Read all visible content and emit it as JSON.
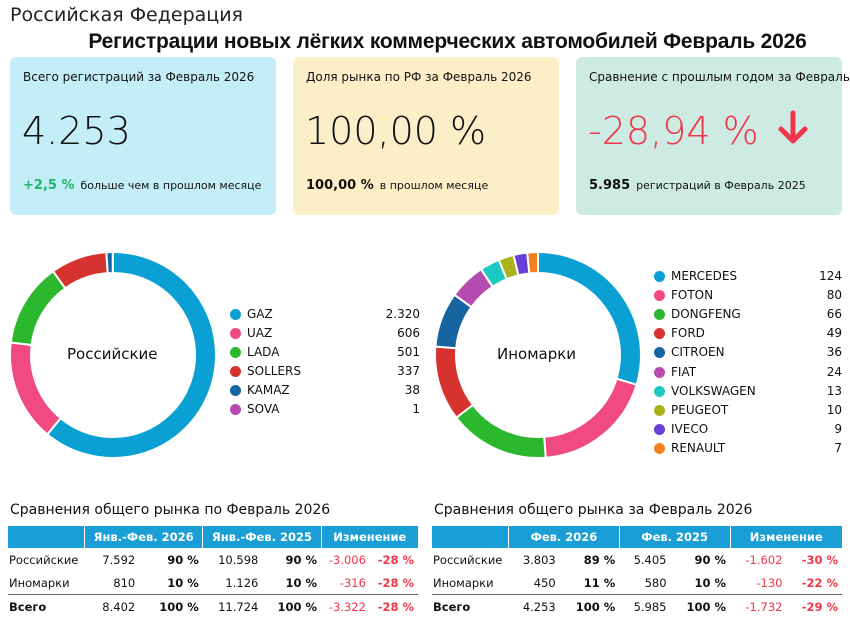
{
  "header": {
    "region": "Российская Федерация",
    "title": "Регистрации новых лёгких коммерческих автомобилей Февраль 2026"
  },
  "cards": {
    "total": {
      "caption": "Всего регистраций за Февраль 2026",
      "value": "4.253",
      "delta": "+2,5 %",
      "delta_text": "больше чем в прошлом месяце"
    },
    "share": {
      "caption": "Доля рынка по РФ за Февраль 2026",
      "value": "100,00 %",
      "prev": "100,00 %",
      "prev_text": "в прошлом месяце"
    },
    "yoy": {
      "caption": "Сравнение с прошлым годом за Февраль",
      "value": "-28,94 %",
      "prev": "5.985",
      "prev_text": "регистраций в Февраль 2025",
      "arrow_icon": "arrow-down-icon"
    }
  },
  "colors": {
    "accent_blue": "#1a9ed6",
    "positive": "#1db46d",
    "negative": "#f0364b"
  },
  "chart_data": [
    {
      "type": "pie",
      "donut": true,
      "title": "Российские",
      "categories": [
        "GAZ",
        "UAZ",
        "LADA",
        "SOLLERS",
        "KAMAZ",
        "SOVA"
      ],
      "values": [
        2320,
        606,
        501,
        337,
        38,
        1
      ],
      "value_labels": [
        "2.320",
        "606",
        "501",
        "337",
        "38",
        "1"
      ],
      "colors": [
        "#0aa0d4",
        "#f04a80",
        "#2bb82e",
        "#d6322e",
        "#1765a0",
        "#b54bb0"
      ]
    },
    {
      "type": "pie",
      "donut": true,
      "title": "Иномарки",
      "categories": [
        "MERCEDES",
        "FOTON",
        "DONGFENG",
        "FORD",
        "CITROEN",
        "FIAT",
        "VOLKSWAGEN",
        "PEUGEOT",
        "IVECO",
        "RENAULT"
      ],
      "values": [
        124,
        80,
        66,
        49,
        36,
        24,
        13,
        10,
        9,
        7
      ],
      "value_labels": [
        "124",
        "80",
        "66",
        "49",
        "36",
        "24",
        "13",
        "10",
        "9",
        "7"
      ],
      "colors": [
        "#0aa0d4",
        "#f04a80",
        "#2bb82e",
        "#d6322e",
        "#1765a0",
        "#b54bb0",
        "#1ec9c0",
        "#a9b21a",
        "#6a3fd6",
        "#f08020"
      ]
    },
    {
      "type": "table",
      "title": "Сравнения общего рынка по Февраль 2026",
      "columns": [
        "Янв.-Фев. 2026",
        "Янв.-Фев. 2025",
        "Изменение"
      ],
      "rows": [
        {
          "label": "Российские",
          "cur": "7.592",
          "cur_pct": "90 %",
          "prev": "10.598",
          "prev_pct": "90 %",
          "chg": "-3.006",
          "chg_pct": "-28 %"
        },
        {
          "label": "Иномарки",
          "cur": "810",
          "cur_pct": "10 %",
          "prev": "1.126",
          "prev_pct": "10 %",
          "chg": "-316",
          "chg_pct": "-28 %"
        },
        {
          "label": "Всего",
          "cur": "8.402",
          "cur_pct": "100 %",
          "prev": "11.724",
          "prev_pct": "100 %",
          "chg": "-3.322",
          "chg_pct": "-28 %"
        }
      ]
    },
    {
      "type": "table",
      "title": "Сравнения общего рынка за Февраль 2026",
      "columns": [
        "Фев. 2026",
        "Фев. 2025",
        "Изменение"
      ],
      "rows": [
        {
          "label": "Российские",
          "cur": "3.803",
          "cur_pct": "89 %",
          "prev": "5.405",
          "prev_pct": "90 %",
          "chg": "-1.602",
          "chg_pct": "-30 %"
        },
        {
          "label": "Иномарки",
          "cur": "450",
          "cur_pct": "11 %",
          "prev": "580",
          "prev_pct": "10 %",
          "chg": "-130",
          "chg_pct": "-22 %"
        },
        {
          "label": "Всего",
          "cur": "4.253",
          "cur_pct": "100 %",
          "prev": "5.985",
          "prev_pct": "100 %",
          "chg": "-1.732",
          "chg_pct": "-29 %"
        }
      ]
    }
  ]
}
